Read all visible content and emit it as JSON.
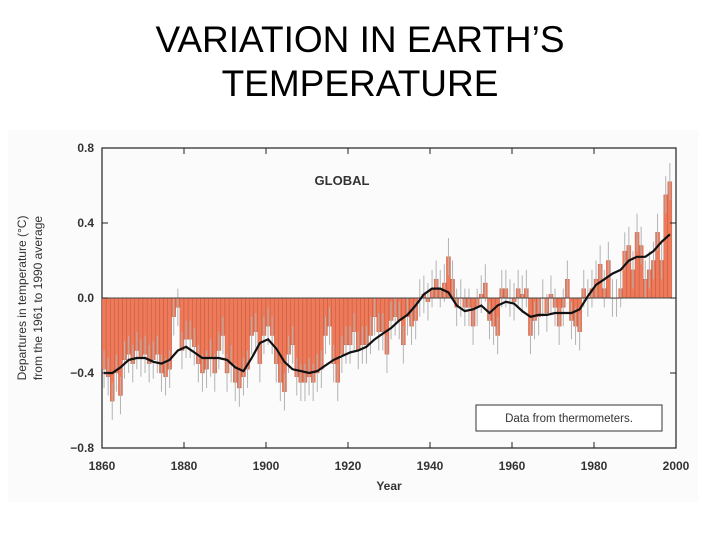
{
  "slide": {
    "title_line1": "VARIATION IN EARTH’S",
    "title_line2": "TEMPERATURE"
  },
  "colors": {
    "bar_fill": "#ee7a5a",
    "bar_stroke": "#a9452c",
    "error_bar": "#b3b3b3",
    "smoothed_line": "#111111",
    "axis": "#222222"
  },
  "chart_data": {
    "type": "bar",
    "title": "GLOBAL",
    "ylabel_line1": "Departures in temperature (°C)",
    "ylabel_line2": "from the 1961 to 1990 average",
    "xlabel": "Year",
    "annotation": "Data from thermometers.",
    "xlim": [
      1860,
      2000
    ],
    "ylim": [
      -0.8,
      0.8
    ],
    "x_ticks": [
      "1860",
      "1880",
      "1900",
      "1920",
      "1940",
      "1960",
      "1980",
      "2000"
    ],
    "y_ticks": [
      "0.8",
      "0.4",
      "0.0",
      "−0.4",
      "−0.8"
    ],
    "grid": false,
    "error_bar_halfwidth": 0.1,
    "annual_series": {
      "name": "",
      "x": [
        1860,
        1861,
        1862,
        1863,
        1864,
        1865,
        1866,
        1867,
        1868,
        1869,
        1870,
        1871,
        1872,
        1873,
        1874,
        1875,
        1876,
        1877,
        1878,
        1879,
        1880,
        1881,
        1882,
        1883,
        1884,
        1885,
        1886,
        1887,
        1888,
        1889,
        1890,
        1891,
        1892,
        1893,
        1894,
        1895,
        1896,
        1897,
        1898,
        1899,
        1900,
        1901,
        1902,
        1903,
        1904,
        1905,
        1906,
        1907,
        1908,
        1909,
        1910,
        1911,
        1912,
        1913,
        1914,
        1915,
        1916,
        1917,
        1918,
        1919,
        1920,
        1921,
        1922,
        1923,
        1924,
        1925,
        1926,
        1927,
        1928,
        1929,
        1930,
        1931,
        1932,
        1933,
        1934,
        1935,
        1936,
        1937,
        1938,
        1939,
        1940,
        1941,
        1942,
        1943,
        1944,
        1945,
        1946,
        1947,
        1948,
        1949,
        1950,
        1951,
        1952,
        1953,
        1954,
        1955,
        1956,
        1957,
        1958,
        1959,
        1960,
        1961,
        1962,
        1963,
        1964,
        1965,
        1966,
        1967,
        1968,
        1969,
        1970,
        1971,
        1972,
        1973,
        1974,
        1975,
        1976,
        1977,
        1978,
        1979,
        1980,
        1981,
        1982,
        1983,
        1984,
        1985,
        1986,
        1987,
        1988,
        1989,
        1990,
        1991,
        1992,
        1993,
        1994,
        1995,
        1996,
        1997,
        1998
      ],
      "values": [
        -0.38,
        -0.42,
        -0.55,
        -0.4,
        -0.52,
        -0.33,
        -0.3,
        -0.35,
        -0.28,
        -0.32,
        -0.3,
        -0.35,
        -0.33,
        -0.3,
        -0.4,
        -0.42,
        -0.38,
        -0.1,
        -0.05,
        -0.28,
        -0.22,
        -0.22,
        -0.26,
        -0.35,
        -0.4,
        -0.38,
        -0.32,
        -0.4,
        -0.28,
        -0.2,
        -0.4,
        -0.35,
        -0.45,
        -0.48,
        -0.42,
        -0.38,
        -0.2,
        -0.18,
        -0.35,
        -0.2,
        -0.15,
        -0.2,
        -0.35,
        -0.45,
        -0.5,
        -0.3,
        -0.25,
        -0.42,
        -0.45,
        -0.45,
        -0.42,
        -0.45,
        -0.4,
        -0.38,
        -0.2,
        -0.15,
        -0.35,
        -0.45,
        -0.3,
        -0.25,
        -0.25,
        -0.18,
        -0.28,
        -0.25,
        -0.25,
        -0.2,
        -0.1,
        -0.18,
        -0.18,
        -0.3,
        -0.12,
        -0.1,
        -0.12,
        -0.25,
        -0.1,
        -0.15,
        -0.12,
        0.0,
        0.02,
        -0.02,
        0.05,
        0.1,
        0.05,
        0.08,
        0.22,
        0.1,
        -0.05,
        0.0,
        -0.05,
        -0.05,
        -0.15,
        -0.05,
        0.02,
        0.08,
        -0.12,
        -0.15,
        -0.2,
        0.05,
        0.05,
        0.0,
        -0.02,
        0.05,
        0.02,
        0.05,
        -0.2,
        -0.12,
        -0.1,
        0.0,
        -0.08,
        0.02,
        -0.05,
        -0.15,
        -0.05,
        0.1,
        -0.12,
        -0.15,
        -0.18,
        0.05,
        0.0,
        0.05,
        0.1,
        0.18,
        0.05,
        0.2,
        0.0,
        0.0,
        0.05,
        0.25,
        0.28,
        0.15,
        0.35,
        0.28,
        0.1,
        0.15,
        0.2,
        0.35,
        0.2,
        0.55,
        0.62
      ]
    },
    "smoothed_series": {
      "name": "",
      "x": [
        1860,
        1862,
        1864,
        1866,
        1868,
        1870,
        1872,
        1874,
        1876,
        1878,
        1880,
        1882,
        1884,
        1886,
        1888,
        1890,
        1892,
        1894,
        1896,
        1898,
        1900,
        1902,
        1904,
        1906,
        1908,
        1910,
        1912,
        1914,
        1916,
        1918,
        1920,
        1922,
        1924,
        1926,
        1928,
        1930,
        1932,
        1934,
        1936,
        1938,
        1940,
        1942,
        1944,
        1946,
        1948,
        1950,
        1952,
        1954,
        1956,
        1958,
        1960,
        1962,
        1964,
        1966,
        1968,
        1970,
        1972,
        1974,
        1976,
        1978,
        1980,
        1982,
        1984,
        1986,
        1988,
        1990,
        1992,
        1994,
        1996,
        1998
      ],
      "values": [
        -0.4,
        -0.4,
        -0.37,
        -0.33,
        -0.32,
        -0.32,
        -0.34,
        -0.35,
        -0.33,
        -0.28,
        -0.26,
        -0.29,
        -0.32,
        -0.32,
        -0.32,
        -0.33,
        -0.37,
        -0.39,
        -0.32,
        -0.24,
        -0.22,
        -0.27,
        -0.34,
        -0.38,
        -0.39,
        -0.4,
        -0.39,
        -0.36,
        -0.33,
        -0.31,
        -0.29,
        -0.28,
        -0.26,
        -0.22,
        -0.19,
        -0.16,
        -0.12,
        -0.09,
        -0.04,
        0.02,
        0.05,
        0.05,
        0.03,
        -0.04,
        -0.07,
        -0.06,
        -0.04,
        -0.08,
        -0.04,
        -0.02,
        -0.03,
        -0.07,
        -0.1,
        -0.09,
        -0.09,
        -0.08,
        -0.08,
        -0.08,
        -0.06,
        0.01,
        0.07,
        0.1,
        0.13,
        0.15,
        0.2,
        0.22,
        0.22,
        0.25,
        0.3,
        0.34
      ]
    }
  }
}
